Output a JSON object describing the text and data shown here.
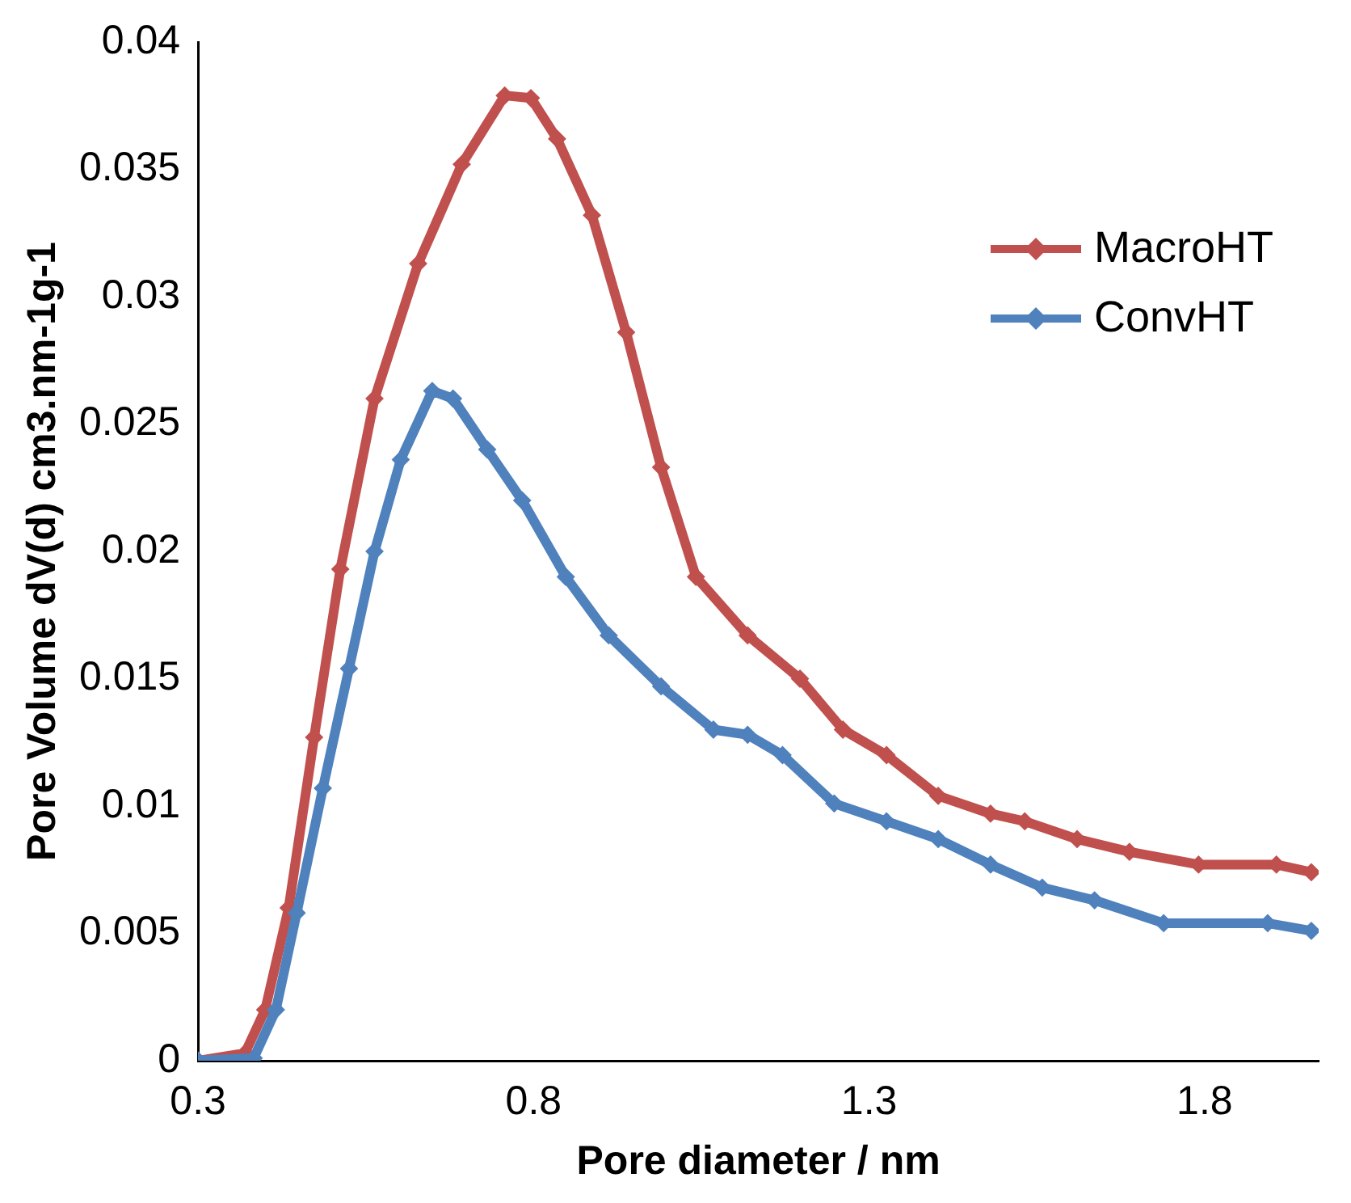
{
  "chart_data": {
    "type": "line",
    "xlabel": "Pore diameter / nm",
    "ylabel": "Pore Volume dV(d) cm3.nm-1g-1",
    "xlim": [
      0.3,
      1.97
    ],
    "xticks": [
      0.3,
      0.8,
      1.3,
      1.8
    ],
    "ylim": [
      0,
      0.04
    ],
    "yticks": [
      0,
      0.005,
      0.01,
      0.015,
      0.02,
      0.025,
      0.03,
      0.035,
      0.04
    ],
    "grid": false,
    "legend": "top right",
    "marker": "diamond",
    "line_style": "solid",
    "series": [
      {
        "name": "MacroHT",
        "color": "#c0504d",
        "x": [
          0.3,
          0.37,
          0.4,
          0.435,
          0.473,
          0.512,
          0.563,
          0.628,
          0.693,
          0.757,
          0.796,
          0.835,
          0.887,
          0.938,
          0.99,
          1.042,
          1.119,
          1.197,
          1.261,
          1.326,
          1.403,
          1.481,
          1.532,
          1.61,
          1.688,
          1.791,
          1.907,
          1.959
        ],
        "values": [
          0,
          0.0003,
          0.002,
          0.006,
          0.0127,
          0.0193,
          0.026,
          0.0313,
          0.0352,
          0.0379,
          0.0378,
          0.0362,
          0.0332,
          0.0286,
          0.0233,
          0.019,
          0.0167,
          0.015,
          0.013,
          0.012,
          0.0104,
          0.0097,
          0.0094,
          0.0087,
          0.0082,
          0.0077,
          0.0077,
          0.0074
        ]
      },
      {
        "name": "ConvHT",
        "color": "#4f81bd",
        "x": [
          0.3,
          0.383,
          0.416,
          0.447,
          0.486,
          0.525,
          0.563,
          0.602,
          0.649,
          0.68,
          0.731,
          0.783,
          0.848,
          0.912,
          0.99,
          1.068,
          1.119,
          1.171,
          1.248,
          1.326,
          1.403,
          1.481,
          1.558,
          1.636,
          1.739,
          1.894,
          1.959
        ],
        "values": [
          0,
          0.0001,
          0.002,
          0.0058,
          0.0107,
          0.0154,
          0.02,
          0.0236,
          0.0263,
          0.026,
          0.024,
          0.022,
          0.019,
          0.0167,
          0.0147,
          0.013,
          0.0128,
          0.012,
          0.0101,
          0.0094,
          0.0087,
          0.0077,
          0.0068,
          0.0063,
          0.0054,
          0.0054,
          0.0051
        ]
      }
    ]
  }
}
